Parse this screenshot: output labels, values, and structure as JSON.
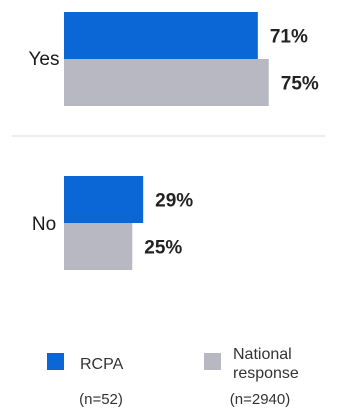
{
  "chart_data": {
    "type": "bar",
    "orientation": "horizontal",
    "categories": [
      "Yes",
      "No"
    ],
    "series": [
      {
        "name": "RCPA",
        "n_label": "(n=52)",
        "color": "#0b67d6",
        "values": [
          71,
          29
        ],
        "data_labels": [
          "71%",
          "29%"
        ]
      },
      {
        "name": "National response",
        "name_lines": [
          "National",
          "response"
        ],
        "n_label": "(n=2940)",
        "color": "#b7b8c2",
        "values": [
          75,
          25
        ],
        "data_labels": [
          "75%",
          "25%"
        ]
      }
    ],
    "xlim": [
      0,
      100
    ],
    "grid": false,
    "legend_position": "bottom",
    "separator_color": "#d9d9d9"
  }
}
